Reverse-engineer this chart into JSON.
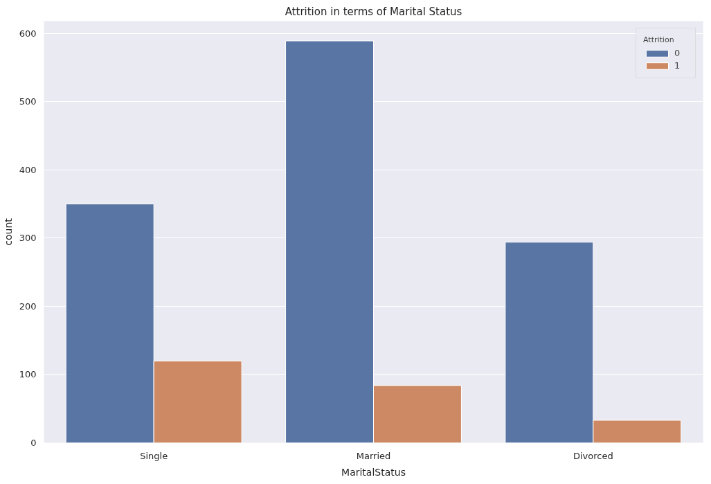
{
  "chart_data": {
    "type": "bar",
    "title": "Attrition in terms of Marital Status",
    "xlabel": "MaritalStatus",
    "ylabel": "count",
    "legend_title": "Attrition",
    "categories": [
      "Single",
      "Married",
      "Divorced"
    ],
    "series": [
      {
        "name": "0",
        "color": "#5975a4",
        "values": [
          350,
          589,
          294
        ]
      },
      {
        "name": "1",
        "color": "#cc8963",
        "values": [
          120,
          84,
          33
        ]
      }
    ],
    "ylim": [
      0,
      618
    ],
    "yticks": [
      0,
      100,
      200,
      300,
      400,
      500,
      600
    ],
    "grid": "y",
    "legend": "top right"
  }
}
